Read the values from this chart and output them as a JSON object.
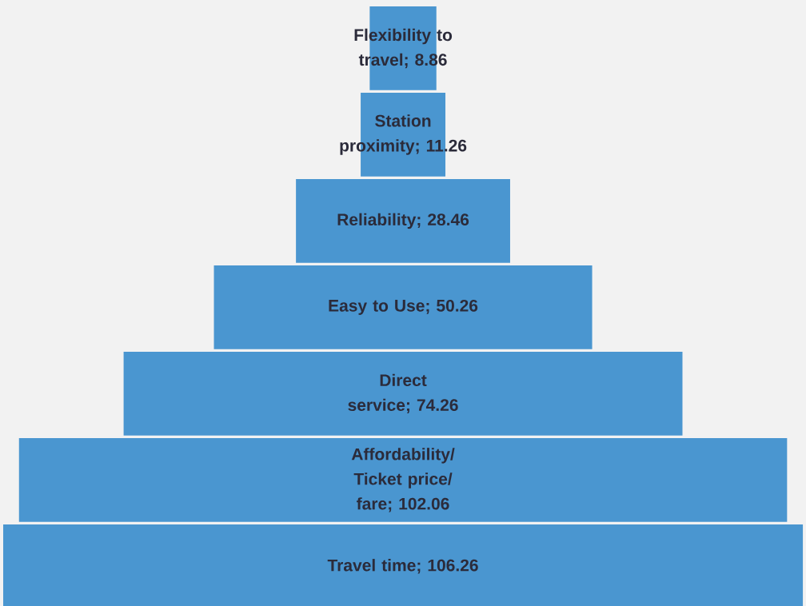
{
  "chart_data": {
    "type": "other",
    "categories": [
      null,
      null,
      null,
      null,
      null,
      null,
      null
    ],
    "values": [
      8.86,
      11.26,
      28.46,
      50.26,
      74.26,
      102.06,
      106.26
    ],
    "value_labels": [
      "Flexibility to travel; 8.86",
      "Station proximity; 11.26",
      "Reliability; 28.46",
      "Easy to Use; 50.26",
      "Direct service; 74.26",
      "Affordability/ Ticket price/ fare; 102.06",
      "Travel time; 106.26"
    ],
    "color": "#4a96d0"
  }
}
